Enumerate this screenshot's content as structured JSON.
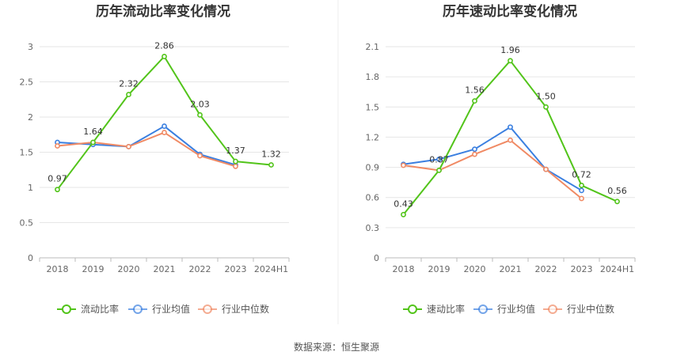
{
  "source": "数据来源：恒生聚源",
  "chart_data": [
    {
      "type": "line",
      "title": "历年流动比率变化情况",
      "categories": [
        "2018",
        "2019",
        "2020",
        "2021",
        "2022",
        "2023",
        "2024H1"
      ],
      "ylim": [
        0,
        3
      ],
      "yticks": [
        "0",
        "0.5",
        "1",
        "1.5",
        "2",
        "2.5",
        "3"
      ],
      "ytick_values": [
        0,
        0.5,
        1,
        1.5,
        2,
        2.5,
        3
      ],
      "grid": true,
      "legend": "bottom",
      "series": [
        {
          "name": "流动比率",
          "color": "#52c41a",
          "values": [
            0.97,
            1.64,
            2.32,
            2.86,
            2.03,
            1.37,
            1.32
          ],
          "labels": [
            "0.97",
            "1.64",
            "2.32",
            "2.86",
            "2.03",
            "1.37",
            "1.32"
          ]
        },
        {
          "name": "行业均值",
          "color": "#3a7fe0",
          "values": [
            1.64,
            1.61,
            1.58,
            1.87,
            1.47,
            1.32,
            null
          ]
        },
        {
          "name": "行业中位数",
          "color": "#f08a64",
          "values": [
            1.59,
            1.64,
            1.58,
            1.78,
            1.45,
            1.3,
            null
          ]
        }
      ]
    },
    {
      "type": "line",
      "title": "历年速动比率变化情况",
      "categories": [
        "2018",
        "2019",
        "2020",
        "2021",
        "2022",
        "2023",
        "2024H1"
      ],
      "ylim": [
        0,
        2.1
      ],
      "yticks": [
        "0",
        "0.3",
        "0.6",
        "0.9",
        "1.2",
        "1.5",
        "1.8",
        "2.1"
      ],
      "ytick_values": [
        0,
        0.3,
        0.6,
        0.9,
        1.2,
        1.5,
        1.8,
        2.1
      ],
      "grid": true,
      "legend": "bottom",
      "series": [
        {
          "name": "速动比率",
          "color": "#52c41a",
          "values": [
            0.43,
            0.87,
            1.56,
            1.96,
            1.5,
            0.72,
            0.56
          ],
          "labels": [
            "0.43",
            "0.87",
            "1.56",
            "1.96",
            "1.50",
            "0.72",
            "0.56"
          ]
        },
        {
          "name": "行业均值",
          "color": "#3a7fe0",
          "values": [
            0.93,
            0.98,
            1.08,
            1.3,
            0.88,
            0.67,
            null
          ]
        },
        {
          "name": "行业中位数",
          "color": "#f08a64",
          "values": [
            0.92,
            0.87,
            1.03,
            1.17,
            0.88,
            0.59,
            null
          ]
        }
      ]
    }
  ]
}
